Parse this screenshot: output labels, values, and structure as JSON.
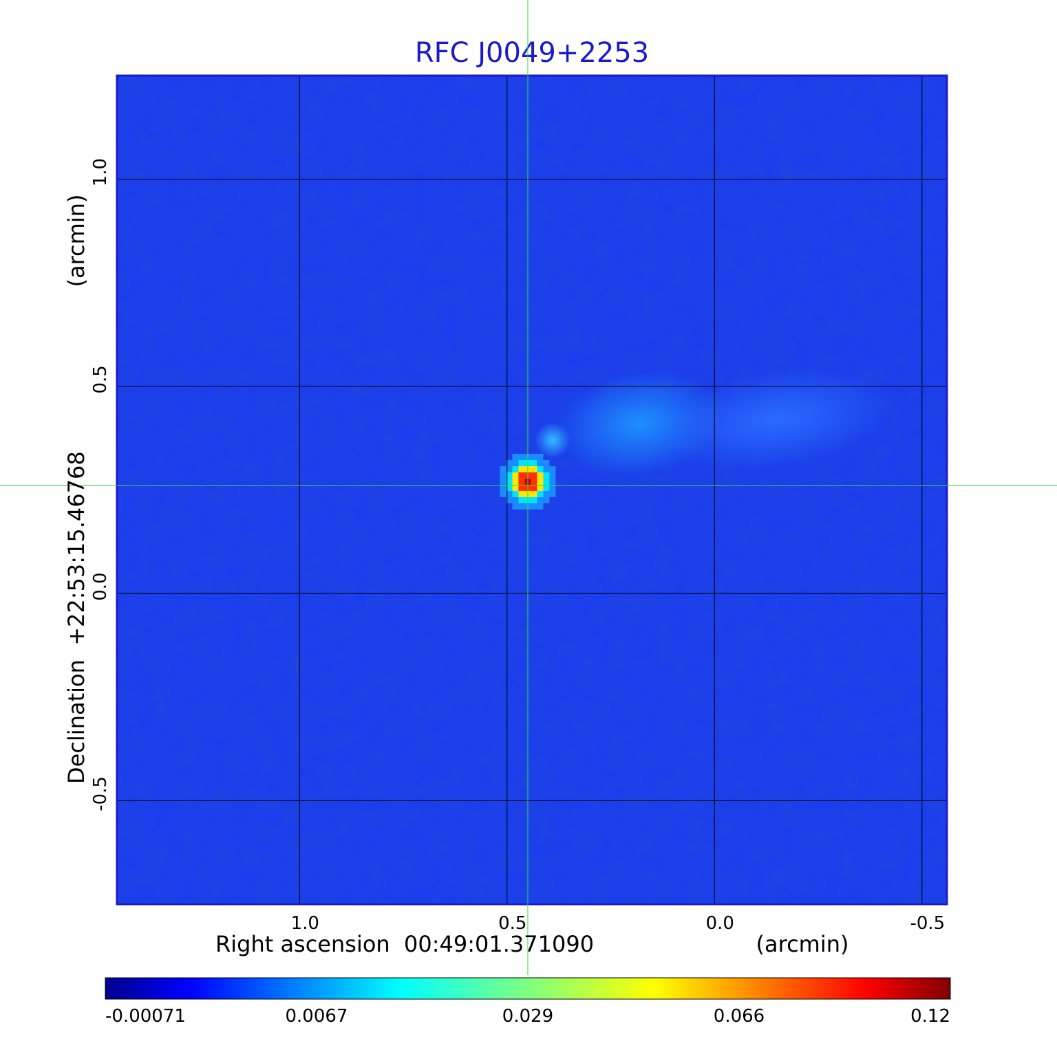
{
  "chart_data": {
    "type": "heatmap",
    "title": "RFC J0049+2253",
    "xlabel": "Right ascension  00:49:01.371090",
    "xlabel_unit": "(arcmin)",
    "ylabel": "Declination  +22:53:15.46768",
    "ylabel_unit": "(arcmin)",
    "x_ticks": [
      1.0,
      0.5,
      0.0,
      -0.5
    ],
    "x_tick_labels": [
      "1.0",
      "0.5",
      "0.0",
      "-0.5"
    ],
    "y_ticks": [
      1.0,
      0.5,
      0.0,
      -0.5
    ],
    "y_tick_labels": [
      "1.0",
      "0.5",
      "0.0",
      "-0.5"
    ],
    "xlim": [
      1.44,
      -0.56
    ],
    "ylim": [
      -0.75,
      1.25
    ],
    "x_reversed": true,
    "grid": true,
    "crosshair": {
      "x": 0.45,
      "y": 0.26,
      "color": "#33dd33"
    },
    "colorbar": {
      "orientation": "horizontal",
      "placement": "bottom",
      "tick_labels": [
        "-0.00071",
        "0.0067",
        "0.029",
        "0.066",
        "0.12"
      ],
      "min": -0.00071,
      "max": 0.12,
      "colormap": "jet"
    },
    "features": [
      {
        "name": "core",
        "x": 0.45,
        "y": 0.27,
        "peak": 0.12
      },
      {
        "name": "jet-knot",
        "x": 0.39,
        "y": 0.37,
        "peak": 0.009
      },
      {
        "name": "extended-emission",
        "x": 0.18,
        "y": 0.41,
        "peak": 0.006
      },
      {
        "name": "extended-emission",
        "x": -0.15,
        "y": 0.42,
        "peak": 0.004
      }
    ]
  },
  "colors": {
    "title": "#1a1acc",
    "frame": "#1a1acc",
    "grid": "#000000",
    "background_field": "#1a3cf0"
  }
}
